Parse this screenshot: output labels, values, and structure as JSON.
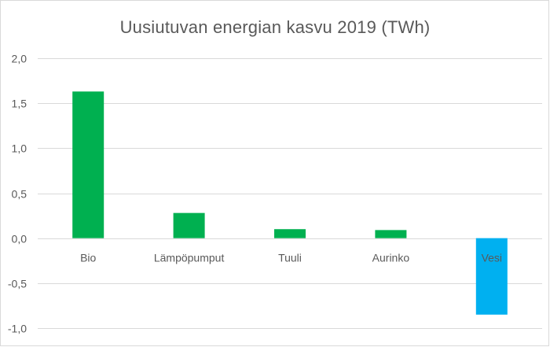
{
  "chart_data": {
    "type": "bar",
    "title": "Uusiutuvan energian kasvu 2019 (TWh)",
    "xlabel": "",
    "ylabel": "",
    "categories": [
      "Bio",
      "Lämpöpumput",
      "Tuuli",
      "Aurinko",
      "Vesi"
    ],
    "values": [
      1.63,
      0.28,
      0.1,
      0.09,
      -0.85
    ],
    "colors": [
      "#00b050",
      "#00b050",
      "#00b050",
      "#00b050",
      "#00b0f0"
    ],
    "ylim": [
      -1.0,
      2.0
    ],
    "yticks": [
      2.0,
      1.5,
      1.0,
      0.5,
      0.0,
      -0.5,
      -1.0
    ],
    "ytick_labels": [
      "2,0",
      "1,5",
      "1,0",
      "0,5",
      "0,0",
      "-0,5",
      "-1,0"
    ],
    "grid": true,
    "legend": "none"
  }
}
